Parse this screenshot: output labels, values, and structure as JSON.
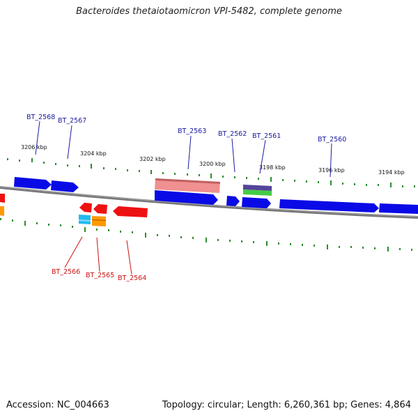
{
  "title": "Bacteroides thetaiotaomicron VPI-5482, complete genome",
  "footer": {
    "accession": "Accession: NC_004663",
    "summary": "Topology: circular; Length: 6,260,361 bp; Genes: 4,864"
  },
  "colors": {
    "backbone": "#777777",
    "tick": "#2e8b2e",
    "forward_gene": "#0a0ae6",
    "reverse_gene": "#ee1111",
    "forward_label": "#1a1aa0",
    "reverse_label": "#cc1111",
    "pink_feature": "#f09090",
    "orange_feature": "#ff9900",
    "cyan_feature": "#22bbee",
    "purple_feature": "#554499",
    "green_feature": "#44cc44"
  },
  "scale_labels": [
    "3206 kbp",
    "3204 kbp",
    "3202 kbp",
    "3200 kbp",
    "3198 kbp",
    "3196 kbp",
    "3194 kbp"
  ],
  "forward_labels": [
    "BT_2568",
    "BT_2567",
    "BT_2563",
    "BT_2562",
    "BT_2561",
    "BT_2560"
  ],
  "reverse_labels": [
    "BT_2566",
    "BT_2565",
    "BT_2564"
  ]
}
